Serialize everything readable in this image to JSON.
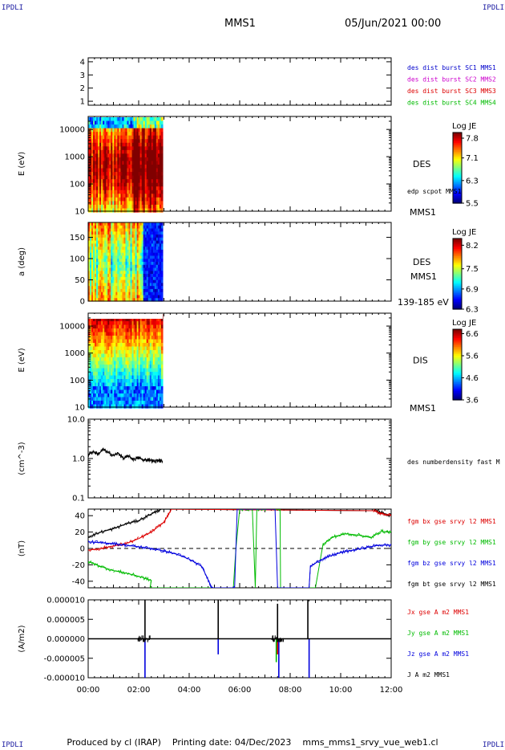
{
  "header": {
    "corner_label": "IPDLI",
    "spacecraft": "MMS1",
    "datetime": "05/Jun/2021 00:00"
  },
  "footer": {
    "produced_by": "Produced by cl (IRAP)",
    "printing_date": "Printing date: 04/Dec/2023",
    "filename": "mms_mms1_srvy_vue_web1.cl"
  },
  "chart_data": {
    "type": "multi-panel time series",
    "x": {
      "range_hours": [
        0,
        12
      ],
      "tick_labels": [
        "00:00",
        "02:00",
        "04:00",
        "06:00",
        "08:00",
        "10:00",
        "12:00"
      ]
    },
    "panels": [
      {
        "id": "burst",
        "type": "event-bar",
        "y_ticks": [
          "1",
          "2",
          "3",
          "4"
        ],
        "ylim": [
          0.7,
          4.3
        ],
        "legend": [
          {
            "label": "des dist burst SC1 MMS1",
            "color": "#0000cc"
          },
          {
            "label": "des dist burst SC2 MMS2",
            "color": "#cc00cc"
          },
          {
            "label": "des dist burst SC3 MMS3",
            "color": "#dd0000"
          },
          {
            "label": "des dist burst SC4 MMS4",
            "color": "#00bb00"
          }
        ]
      },
      {
        "id": "des-energy",
        "type": "heatmap",
        "ylabel": "E (eV)",
        "y_scale": "log",
        "ylim": [
          10,
          30000
        ],
        "y_ticks": [
          "10",
          "100",
          "1000",
          "10000"
        ],
        "data_hours": [
          0,
          2.95
        ],
        "colorbar": {
          "title": "Log JE",
          "ticks": [
            "7.8",
            "7.1",
            "6.3",
            "5.5"
          ],
          "range": [
            5.5,
            8.0
          ]
        },
        "side_label": "DES",
        "side_note": "edp scpot MMS1",
        "bottom_label": "MMS1"
      },
      {
        "id": "des-pitch",
        "type": "heatmap",
        "ylabel": "a (deg)",
        "ylim": [
          0,
          185
        ],
        "y_ticks": [
          "0",
          "50",
          "100",
          "150"
        ],
        "data_hours": [
          0,
          2.95
        ],
        "colorbar": {
          "title": "Log JE",
          "ticks": [
            "8.2",
            "7.5",
            "6.9",
            "6.3"
          ],
          "range": [
            6.3,
            8.4
          ]
        },
        "side_label": "DES",
        "side_label2": "MMS1",
        "bottom_label": "139-185 eV"
      },
      {
        "id": "dis-energy",
        "type": "heatmap",
        "ylabel": "E (eV)",
        "y_scale": "log",
        "ylim": [
          10,
          30000
        ],
        "y_ticks": [
          "10",
          "100",
          "1000",
          "10000"
        ],
        "data_hours": [
          0,
          2.95
        ],
        "colorbar": {
          "title": "Log JE",
          "ticks": [
            "6.6",
            "5.6",
            "4.6",
            "3.6"
          ],
          "range": [
            3.6,
            6.8
          ]
        },
        "side_label": "DIS",
        "bottom_label": "MMS1"
      },
      {
        "id": "density",
        "type": "line",
        "ylabel": "(cm^-3)",
        "y_scale": "log",
        "ylim": [
          0.1,
          10
        ],
        "y_ticks": [
          "0.1",
          "1.0",
          "10.0"
        ],
        "legend": [
          {
            "label": "des numberdensity fast M",
            "color": "#000000"
          }
        ],
        "series": [
          {
            "name": "des numberdensity fast M",
            "color": "#000000",
            "x": [
              0.0,
              0.2,
              0.4,
              0.6,
              0.8,
              1.0,
              1.2,
              1.4,
              1.6,
              1.8,
              2.0,
              2.2,
              2.4,
              2.6,
              2.8,
              2.95
            ],
            "y": [
              1.25,
              1.5,
              1.3,
              1.7,
              1.4,
              1.2,
              1.35,
              1.0,
              1.15,
              0.95,
              1.05,
              0.9,
              0.95,
              0.85,
              0.9,
              0.85
            ]
          }
        ]
      },
      {
        "id": "fgm",
        "type": "line",
        "ylabel": "(nT)",
        "ylim": [
          -48,
          48
        ],
        "y_ticks": [
          "-40",
          "-20",
          "0",
          "20",
          "40"
        ],
        "legend": [
          {
            "label": "fgm bx gse srvy l2 MMS1",
            "color": "#dd0000"
          },
          {
            "label": "fgm by gse srvy l2 MMS1",
            "color": "#00bb00"
          },
          {
            "label": "fgm bz gse srvy l2 MMS1",
            "color": "#0000dd"
          },
          {
            "label": "fgm bt gse srvy l2 MMS1",
            "color": "#000000"
          }
        ],
        "series": [
          {
            "name": "fgm bt gse srvy l2 MMS1",
            "color": "#000000",
            "x": [
              0.0,
              0.5,
              1.0,
              1.5,
              2.0,
              2.5,
              2.9,
              11.3,
              11.6,
              12.0
            ],
            "y": [
              14,
              20,
              24,
              30,
              34,
              42,
              48,
              46,
              44,
              40
            ]
          },
          {
            "name": "fgm bx gse srvy l2 MMS1",
            "color": "#dd0000",
            "x": [
              0.0,
              0.5,
              1.0,
              1.5,
              2.0,
              2.5,
              3.0,
              3.3,
              11.3,
              11.6,
              12.0
            ],
            "y": [
              -2,
              0,
              3,
              6,
              12,
              20,
              32,
              48,
              46,
              43,
              40
            ]
          },
          {
            "name": "fgm by gse srvy l2 MMS1",
            "color": "#00bb00",
            "x": [
              0.0,
              0.5,
              1.0,
              1.5,
              2.0,
              2.5,
              2.45,
              5.75,
              5.85,
              6.0,
              6.5,
              6.62,
              6.68,
              7.6,
              7.62,
              9.0,
              9.3,
              9.7,
              10.2,
              10.8,
              11.2,
              11.6,
              12.0
            ],
            "y": [
              -16,
              -22,
              -27,
              -30,
              -34,
              -39,
              -48,
              -48,
              0,
              48,
              48,
              -48,
              48,
              48,
              -48,
              -48,
              5,
              14,
              18,
              16,
              13,
              21,
              20
            ]
          },
          {
            "name": "fgm bz gse srvy l2 MMS1",
            "color": "#0000dd",
            "x": [
              0.0,
              0.5,
              1.0,
              1.5,
              2.0,
              2.5,
              3.0,
              3.5,
              4.0,
              4.5,
              4.9,
              5.8,
              5.9,
              7.4,
              7.5,
              8.75,
              8.8,
              9.2,
              9.6,
              10.0,
              10.5,
              11.0,
              11.5,
              12.0
            ],
            "y": [
              8,
              7,
              6,
              4,
              2,
              0,
              -3,
              -7,
              -13,
              -22,
              -48,
              -48,
              48,
              48,
              -48,
              -48,
              -22,
              -14,
              -9,
              -5,
              -2,
              1,
              4,
              4
            ]
          }
        ]
      },
      {
        "id": "current",
        "type": "line",
        "ylabel": "(A/m2)",
        "ylim": [
          -1e-05,
          1e-05
        ],
        "y_ticks": [
          "-0.000010",
          "-0.000005",
          "0.000000",
          "0.000005",
          "0.000010"
        ],
        "legend": [
          {
            "label": "Jx gse A m2 MMS1",
            "color": "#dd0000"
          },
          {
            "label": "Jy gse A m2 MMS1",
            "color": "#00bb00"
          },
          {
            "label": "Jz gse A m2 MMS1",
            "color": "#0000dd"
          },
          {
            "label": "J A m2 MMS1",
            "color": "#000000"
          }
        ],
        "spikes": [
          {
            "name": "J A m2 MMS1",
            "color": "#000000",
            "x": [
              2.25,
              5.15,
              7.5,
              8.7
            ],
            "y": [
              1e-05,
              1e-05,
              9e-06,
              1e-05
            ]
          },
          {
            "name": "Jz gse A m2 MMS1",
            "color": "#0000dd",
            "x": [
              2.25,
              5.15,
              7.55,
              8.75
            ],
            "y": [
              -1e-05,
              -4e-06,
              -1e-05,
              -1e-05
            ]
          },
          {
            "name": "Jy gse A m2 MMS1",
            "color": "#00bb00",
            "x": [
              7.45
            ],
            "y": [
              -6e-06
            ]
          },
          {
            "name": "Jx gse A m2 MMS1",
            "color": "#dd0000",
            "x": [
              7.5
            ],
            "y": [
              -4e-06
            ]
          }
        ]
      }
    ]
  }
}
